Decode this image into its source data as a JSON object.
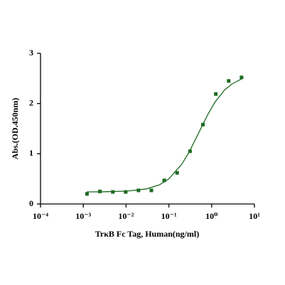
{
  "chart_data": {
    "type": "scatter",
    "x_label": "TrκB Fc Tag, Human(ng/ml)",
    "y_label": "Abs.(OD.450nm)",
    "xscale": "log",
    "xlim": [
      0.0001,
      10
    ],
    "xticks": [
      {
        "value": 0.0001,
        "label": "10⁻⁴"
      },
      {
        "value": 0.001,
        "label": "10⁻³"
      },
      {
        "value": 0.01,
        "label": "10⁻²"
      },
      {
        "value": 0.1,
        "label": "10⁻¹"
      },
      {
        "value": 1,
        "label": "10⁰"
      },
      {
        "value": 10,
        "label": "10¹"
      }
    ],
    "ylim": [
      0,
      3
    ],
    "yticks": [
      0,
      1,
      2,
      3
    ],
    "color": "#1d6b22",
    "x": [
      0.00122,
      0.00244,
      0.0049,
      0.0098,
      0.0195,
      0.039,
      0.078,
      0.156,
      0.3125,
      0.625,
      1.25,
      2.5,
      5
    ],
    "values": [
      0.2,
      0.25,
      0.24,
      0.24,
      0.27,
      0.27,
      0.47,
      0.62,
      1.05,
      1.58,
      2.19,
      2.45,
      2.52
    ],
    "fit_curve": {
      "x": [
        0.0012,
        0.003,
        0.01,
        0.03,
        0.06,
        0.1,
        0.2,
        0.3,
        0.5,
        0.8,
        1.2,
        2,
        3,
        5
      ],
      "values": [
        0.24,
        0.243,
        0.255,
        0.3,
        0.38,
        0.5,
        0.79,
        1.04,
        1.42,
        1.77,
        2.03,
        2.27,
        2.39,
        2.49
      ]
    }
  }
}
